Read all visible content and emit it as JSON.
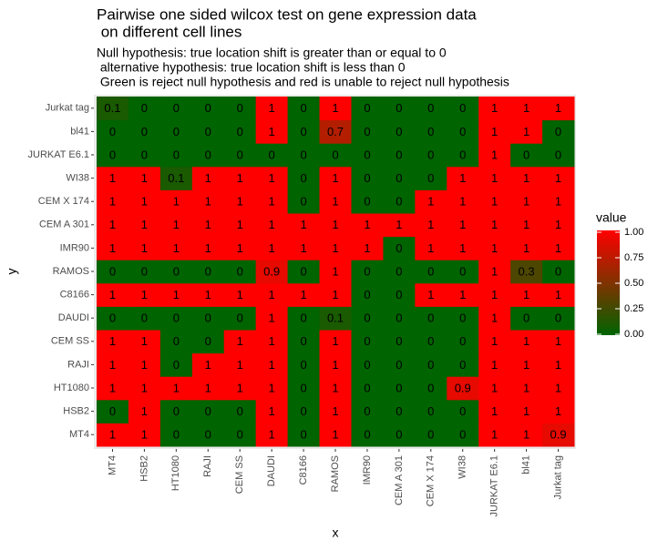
{
  "chart_data": {
    "type": "heatmap",
    "title": [
      "Pairwise one sided wilcox test on gene expression data",
      " on different cell lines"
    ],
    "subtitle": [
      "Null hypothesis: true location shift is greater than or equal to 0",
      " alternative hypothesis: true location shift is less than 0",
      " Green is reject null hypothesis and red is unable to reject null hypothesis"
    ],
    "x_label": "x",
    "y_label": "y",
    "legend_title": "value",
    "x": [
      "MT4",
      "HSB2",
      "HT1080",
      "RAJI",
      "CEM SS",
      "DAUDI",
      "C8166",
      "RAMOS",
      "IMR90",
      "CEM A 301",
      "CEM X 174",
      "WI38",
      "JURKAT E6.1",
      "bl41",
      "Jurkat tag"
    ],
    "y": [
      "MT4",
      "HSB2",
      "HT1080",
      "RAJI",
      "CEM SS",
      "DAUDI",
      "C8166",
      "RAMOS",
      "IMR90",
      "CEM A 301",
      "CEM X 174",
      "WI38",
      "JURKAT E6.1",
      "bl41",
      "Jurkat tag"
    ],
    "values": [
      [
        1,
        1,
        0,
        0,
        0,
        1,
        0,
        1,
        0,
        0,
        0,
        0,
        1,
        1,
        0.9
      ],
      [
        0,
        1,
        0,
        0,
        0,
        1,
        0,
        1,
        0,
        0,
        0,
        0,
        1,
        1,
        1
      ],
      [
        1,
        1,
        1,
        1,
        1,
        1,
        0,
        1,
        0,
        0,
        0,
        0.9,
        1,
        1,
        1
      ],
      [
        1,
        1,
        0,
        1,
        1,
        1,
        0,
        1,
        0,
        0,
        0,
        0,
        1,
        1,
        1
      ],
      [
        1,
        1,
        0,
        0,
        1,
        1,
        0,
        1,
        0,
        0,
        0,
        0,
        1,
        1,
        1
      ],
      [
        0,
        0,
        0,
        0,
        0,
        1,
        0,
        0.1,
        0,
        0,
        0,
        0,
        1,
        0,
        0
      ],
      [
        1,
        1,
        1,
        1,
        1,
        1,
        1,
        1,
        0,
        0,
        1,
        1,
        1,
        1,
        1
      ],
      [
        0,
        0,
        0,
        0,
        0,
        0.9,
        0,
        1,
        0,
        0,
        0,
        0,
        1,
        0.3,
        0
      ],
      [
        1,
        1,
        1,
        1,
        1,
        1,
        1,
        1,
        1,
        0,
        1,
        1,
        1,
        1,
        1
      ],
      [
        1,
        1,
        1,
        1,
        1,
        1,
        1,
        1,
        1,
        1,
        1,
        1,
        1,
        1,
        1
      ],
      [
        1,
        1,
        1,
        1,
        1,
        1,
        0,
        1,
        0,
        0,
        1,
        1,
        1,
        1,
        1
      ],
      [
        1,
        1,
        0.1,
        1,
        1,
        1,
        0,
        1,
        0,
        0,
        0,
        1,
        1,
        1,
        1
      ],
      [
        0,
        0,
        0,
        0,
        0,
        0,
        0,
        0,
        0,
        0,
        0,
        0,
        1,
        0,
        0
      ],
      [
        0,
        0,
        0,
        0,
        0,
        1,
        0,
        0.7,
        0,
        0,
        0,
        0,
        1,
        1,
        0
      ],
      [
        0.1,
        0,
        0,
        0,
        0,
        1,
        0,
        1,
        0,
        0,
        0,
        0,
        1,
        1,
        1
      ]
    ],
    "low_color": "#006400",
    "high_color": "#ff0000",
    "clim": [
      0,
      1
    ],
    "cticks": [
      {
        "value": 0,
        "label": "0.00"
      },
      {
        "value": 0.25,
        "label": "0.25"
      },
      {
        "value": 0.5,
        "label": "0.50"
      },
      {
        "value": 0.75,
        "label": "0.75"
      },
      {
        "value": 1,
        "label": "1.00"
      }
    ]
  }
}
